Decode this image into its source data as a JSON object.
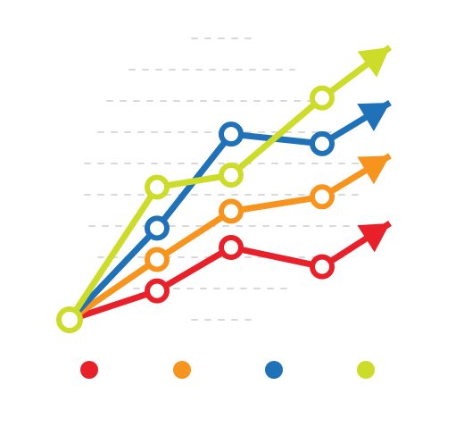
{
  "chart_data": {
    "type": "line",
    "title": "",
    "xlabel": "",
    "ylabel": "",
    "x": [
      0,
      1,
      2,
      3,
      4
    ],
    "ylim": [
      0,
      100
    ],
    "grid": true,
    "legend": "bottom",
    "series": [
      {
        "color": "#E8202A",
        "values": [
          0,
          12,
          30,
          22,
          40
        ]
      },
      {
        "color": "#F7941D",
        "values": [
          0,
          25,
          45,
          51,
          68
        ]
      },
      {
        "color": "#1F71B8",
        "values": [
          0,
          38,
          77,
          73,
          90
        ]
      },
      {
        "color": "#CDDC29",
        "values": [
          0,
          55,
          60,
          92,
          113
        ]
      }
    ]
  }
}
